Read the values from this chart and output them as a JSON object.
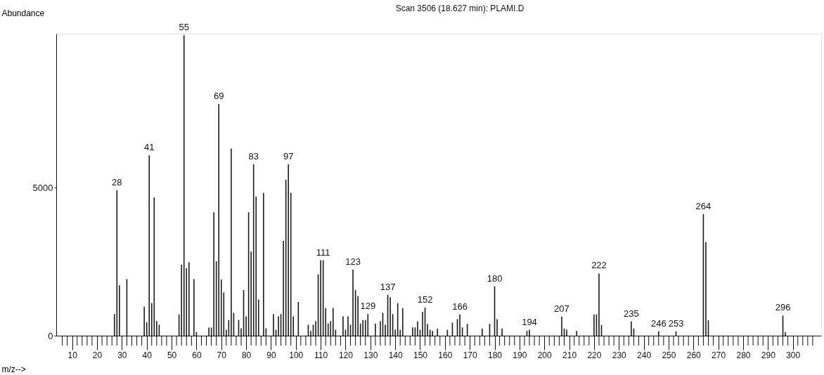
{
  "chart_data": {
    "type": "bar",
    "title": "Scan 3506 (18.627 min): PLAMI.D",
    "xlabel": "m/z-->",
    "ylabel": "Abundance",
    "color": "#1a1a1a",
    "x": [
      27,
      28,
      29,
      32,
      39,
      40,
      41,
      42,
      43,
      44,
      45,
      53,
      54,
      55,
      56,
      57,
      59,
      60,
      65,
      66,
      67,
      68,
      69,
      70,
      71,
      72,
      73,
      74,
      75,
      77,
      78,
      79,
      80,
      81,
      82,
      83,
      84,
      85,
      87,
      88,
      91,
      92,
      93,
      94,
      95,
      96,
      97,
      98,
      99,
      101,
      105,
      106,
      107,
      108,
      109,
      110,
      111,
      112,
      113,
      114,
      115,
      116,
      119,
      120,
      121,
      122,
      123,
      124,
      125,
      126,
      127,
      128,
      129,
      132,
      134,
      135,
      136,
      137,
      138,
      139,
      140,
      141,
      142,
      143,
      147,
      148,
      149,
      150,
      151,
      152,
      153,
      154,
      155,
      157,
      161,
      163,
      165,
      166,
      167,
      169,
      175,
      178,
      180,
      181,
      183,
      193,
      194,
      207,
      208,
      209,
      213,
      220,
      221,
      222,
      223,
      235,
      236,
      246,
      253,
      264,
      265,
      266,
      296,
      297
    ],
    "values": [
      730,
      4910,
      1700,
      1910,
      980,
      450,
      6090,
      1100,
      4670,
      490,
      370,
      720,
      2400,
      10150,
      2280,
      2480,
      1910,
      120,
      270,
      270,
      4170,
      2510,
      7820,
      1900,
      1460,
      200,
      530,
      6320,
      770,
      530,
      250,
      1540,
      650,
      4170,
      2840,
      5790,
      4700,
      1220,
      4820,
      250,
      730,
      200,
      650,
      730,
      3200,
      5270,
      5790,
      4820,
      650,
      1140,
      370,
      160,
      370,
      490,
      2070,
      2550,
      2550,
      930,
      410,
      490,
      930,
      200,
      650,
      200,
      650,
      370,
      2230,
      1540,
      1340,
      410,
      530,
      530,
      730,
      410,
      490,
      770,
      370,
      1380,
      1300,
      730,
      200,
      1100,
      200,
      930,
      280,
      280,
      480,
      200,
      800,
      950,
      400,
      200,
      160,
      240,
      200,
      440,
      560,
      720,
      280,
      400,
      240,
      400,
      1670,
      560,
      240,
      160,
      200,
      640,
      240,
      200,
      160,
      720,
      720,
      2100,
      360,
      480,
      240,
      150,
      150,
      4110,
      3160,
      520,
      680,
      120
    ],
    "xlim": [
      5,
      310
    ],
    "ylim": [
      0,
      10200
    ],
    "yticks": [
      0,
      5000
    ],
    "xticks": [
      {
        "value": 6,
        "label": null
      },
      {
        "value": 8,
        "label": null
      },
      10,
      {
        "value": 12,
        "label": null
      },
      {
        "value": 14,
        "label": null
      },
      {
        "value": 16,
        "label": null
      },
      {
        "value": 18,
        "label": null
      },
      20,
      {
        "value": 22,
        "label": null
      },
      {
        "value": 24,
        "label": null
      },
      {
        "value": 26,
        "label": null
      },
      {
        "value": 28,
        "label": null
      },
      30,
      {
        "value": 32,
        "label": null
      },
      {
        "value": 34,
        "label": null
      },
      {
        "value": 36,
        "label": null
      },
      {
        "value": 38,
        "label": null
      },
      40,
      {
        "value": 42,
        "label": null
      },
      {
        "value": 44,
        "label": null
      },
      {
        "value": 46,
        "label": null
      },
      {
        "value": 48,
        "label": null
      },
      50,
      {
        "value": 52,
        "label": null
      },
      {
        "value": 54,
        "label": null
      },
      {
        "value": 56,
        "label": null
      },
      {
        "value": 58,
        "label": null
      },
      60,
      {
        "value": 62,
        "label": null
      },
      {
        "value": 64,
        "label": null
      },
      {
        "value": 66,
        "label": null
      },
      {
        "value": 68,
        "label": null
      },
      70,
      {
        "value": 72,
        "label": null
      },
      {
        "value": 74,
        "label": null
      },
      {
        "value": 76,
        "label": null
      },
      {
        "value": 78,
        "label": null
      },
      80,
      {
        "value": 82,
        "label": null
      },
      {
        "value": 84,
        "label": null
      },
      {
        "value": 86,
        "label": null
      },
      {
        "value": 88,
        "label": null
      },
      90,
      {
        "value": 92,
        "label": null
      },
      {
        "value": 94,
        "label": null
      },
      {
        "value": 96,
        "label": null
      },
      {
        "value": 98,
        "label": null
      },
      100,
      {
        "value": 102,
        "label": null
      },
      {
        "value": 104,
        "label": null
      },
      {
        "value": 106,
        "label": null
      },
      {
        "value": 108,
        "label": null
      },
      110,
      {
        "value": 112,
        "label": null
      },
      {
        "value": 114,
        "label": null
      },
      {
        "value": 116,
        "label": null
      },
      {
        "value": 118,
        "label": null
      },
      120,
      {
        "value": 122,
        "label": null
      },
      {
        "value": 124,
        "label": null
      },
      {
        "value": 126,
        "label": null
      },
      {
        "value": 128,
        "label": null
      },
      130,
      {
        "value": 132,
        "label": null
      },
      {
        "value": 134,
        "label": null
      },
      {
        "value": 136,
        "label": null
      },
      {
        "value": 138,
        "label": null
      },
      140,
      {
        "value": 142,
        "label": null
      },
      {
        "value": 144,
        "label": null
      },
      {
        "value": 146,
        "label": null
      },
      {
        "value": 148,
        "label": null
      },
      150,
      {
        "value": 152,
        "label": null
      },
      {
        "value": 154,
        "label": null
      },
      {
        "value": 156,
        "label": null
      },
      {
        "value": 158,
        "label": null
      },
      160,
      {
        "value": 162,
        "label": null
      },
      {
        "value": 164,
        "label": null
      },
      {
        "value": 166,
        "label": null
      },
      {
        "value": 168,
        "label": null
      },
      170,
      {
        "value": 172,
        "label": null
      },
      {
        "value": 174,
        "label": null
      },
      {
        "value": 176,
        "label": null
      },
      {
        "value": 178,
        "label": null
      },
      180,
      {
        "value": 182,
        "label": null
      },
      {
        "value": 184,
        "label": null
      },
      {
        "value": 186,
        "label": null
      },
      {
        "value": 188,
        "label": null
      },
      190,
      {
        "value": 192,
        "label": null
      },
      {
        "value": 194,
        "label": null
      },
      {
        "value": 196,
        "label": null
      },
      {
        "value": 198,
        "label": null
      },
      200,
      {
        "value": 202,
        "label": null
      },
      {
        "value": 204,
        "label": null
      },
      {
        "value": 206,
        "label": null
      },
      {
        "value": 208,
        "label": null
      },
      210,
      {
        "value": 212,
        "label": null
      },
      {
        "value": 214,
        "label": null
      },
      {
        "value": 216,
        "label": null
      },
      {
        "value": 218,
        "label": null
      },
      220,
      {
        "value": 222,
        "label": null
      },
      {
        "value": 224,
        "label": null
      },
      {
        "value": 226,
        "label": null
      },
      {
        "value": 228,
        "label": null
      },
      230,
      {
        "value": 232,
        "label": null
      },
      {
        "value": 234,
        "label": null
      },
      {
        "value": 236,
        "label": null
      },
      {
        "value": 238,
        "label": null
      },
      240,
      {
        "value": 242,
        "label": null
      },
      {
        "value": 244,
        "label": null
      },
      {
        "value": 246,
        "label": null
      },
      {
        "value": 248,
        "label": null
      },
      250,
      {
        "value": 252,
        "label": null
      },
      {
        "value": 254,
        "label": null
      },
      {
        "value": 256,
        "label": null
      },
      {
        "value": 258,
        "label": null
      },
      260,
      {
        "value": 262,
        "label": null
      },
      {
        "value": 264,
        "label": null
      },
      {
        "value": 266,
        "label": null
      },
      {
        "value": 268,
        "label": null
      },
      270,
      {
        "value": 272,
        "label": null
      },
      {
        "value": 274,
        "label": null
      },
      {
        "value": 276,
        "label": null
      },
      {
        "value": 278,
        "label": null
      },
      280,
      {
        "value": 282,
        "label": null
      },
      {
        "value": 284,
        "label": null
      },
      {
        "value": 286,
        "label": null
      },
      {
        "value": 288,
        "label": null
      },
      290,
      {
        "value": 292,
        "label": null
      },
      {
        "value": 294,
        "label": null
      },
      {
        "value": 296,
        "label": null
      },
      {
        "value": 298,
        "label": null
      },
      300,
      {
        "value": 302,
        "label": null
      },
      {
        "value": 304,
        "label": null
      },
      {
        "value": 306,
        "label": null
      },
      {
        "value": 308,
        "label": null
      }
    ],
    "annotations": [
      {
        "text": "28",
        "x": 28,
        "y": 4910
      },
      {
        "text": "41",
        "x": 41,
        "y": 6090
      },
      {
        "text": "55",
        "x": 55,
        "y": 10150
      },
      {
        "text": "69",
        "x": 69,
        "y": 7820
      },
      {
        "text": "83",
        "x": 83,
        "y": 5790
      },
      {
        "text": "97",
        "x": 97,
        "y": 5790
      },
      {
        "text": "111",
        "x": 111,
        "y": 2550
      },
      {
        "text": "123",
        "x": 123,
        "y": 2230
      },
      {
        "text": "129",
        "x": 129,
        "y": 730
      },
      {
        "text": "137",
        "x": 137,
        "y": 1380
      },
      {
        "text": "152",
        "x": 152,
        "y": 950
      },
      {
        "text": "166",
        "x": 166,
        "y": 720
      },
      {
        "text": "180",
        "x": 180,
        "y": 1670
      },
      {
        "text": "194",
        "x": 194,
        "y": 200
      },
      {
        "text": "207",
        "x": 207,
        "y": 640
      },
      {
        "text": "222",
        "x": 222,
        "y": 2100
      },
      {
        "text": "235",
        "x": 235,
        "y": 480
      },
      {
        "text": "246",
        "x": 246,
        "y": 150
      },
      {
        "text": "253",
        "x": 253,
        "y": 150
      },
      {
        "text": "264",
        "x": 264,
        "y": 4110
      },
      {
        "text": "296",
        "x": 296,
        "y": 680
      }
    ]
  }
}
